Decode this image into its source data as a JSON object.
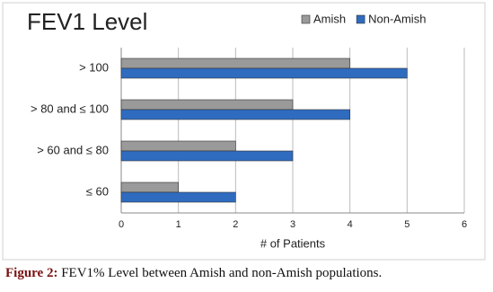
{
  "chart_data": {
    "type": "bar",
    "orientation": "horizontal",
    "title": "FEV1 Level",
    "categories": [
      "> 100",
      "> 80 and ≤ 100",
      "> 60 and ≤ 80",
      "≤ 60"
    ],
    "series": [
      {
        "name": "Amish",
        "color": "#9a9a9a",
        "values": [
          4,
          3,
          2,
          1
        ]
      },
      {
        "name": "Non-Amish",
        "color": "#2f6cc0",
        "values": [
          5,
          4,
          3,
          2
        ]
      }
    ],
    "x_label": "# of Patients",
    "xlim": [
      0,
      6
    ],
    "xticks": [
      0,
      1,
      2,
      3,
      4,
      5,
      6
    ],
    "grid": true,
    "legend": "top-right"
  },
  "caption": {
    "label": "Figure 2:",
    "text": "FEV1% Level between Amish and non-Amish populations."
  }
}
